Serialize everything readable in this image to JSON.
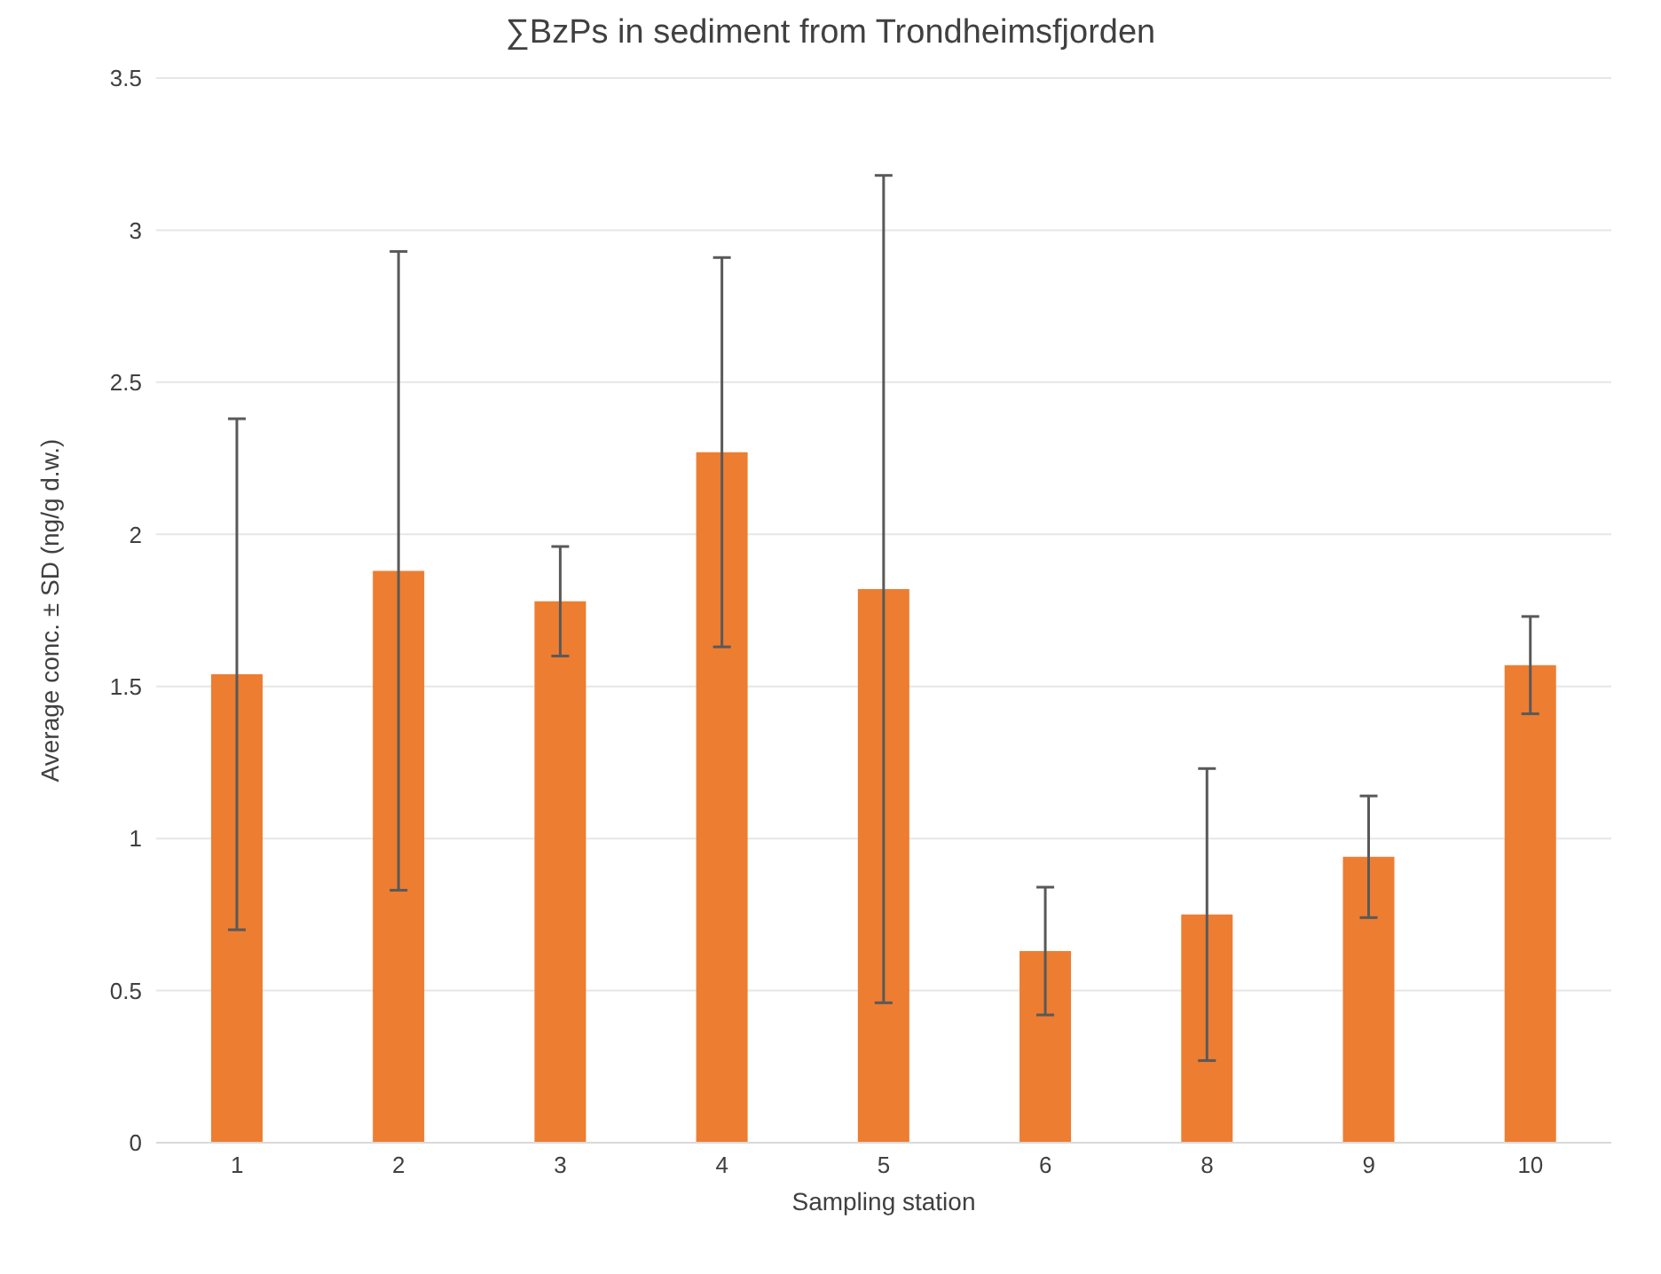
{
  "chart_data": {
    "type": "bar",
    "title": "∑BzPs in sediment from Trondheimsfjorden",
    "xlabel": "Sampling station",
    "ylabel": "Average conc. ± SD (ng/g d.w.)",
    "categories": [
      "1",
      "2",
      "3",
      "4",
      "5",
      "6",
      "8",
      "9",
      "10"
    ],
    "values": [
      1.54,
      1.88,
      1.78,
      2.27,
      1.82,
      0.63,
      0.75,
      0.94,
      1.57
    ],
    "errors": [
      0.84,
      1.05,
      0.18,
      0.64,
      1.36,
      0.21,
      0.48,
      0.2,
      0.16
    ],
    "color": "#ed7d31",
    "ylim": [
      0,
      3.5
    ],
    "yticks": [
      0,
      0.5,
      1,
      1.5,
      2,
      2.5,
      3,
      3.5
    ],
    "grid": "y"
  }
}
